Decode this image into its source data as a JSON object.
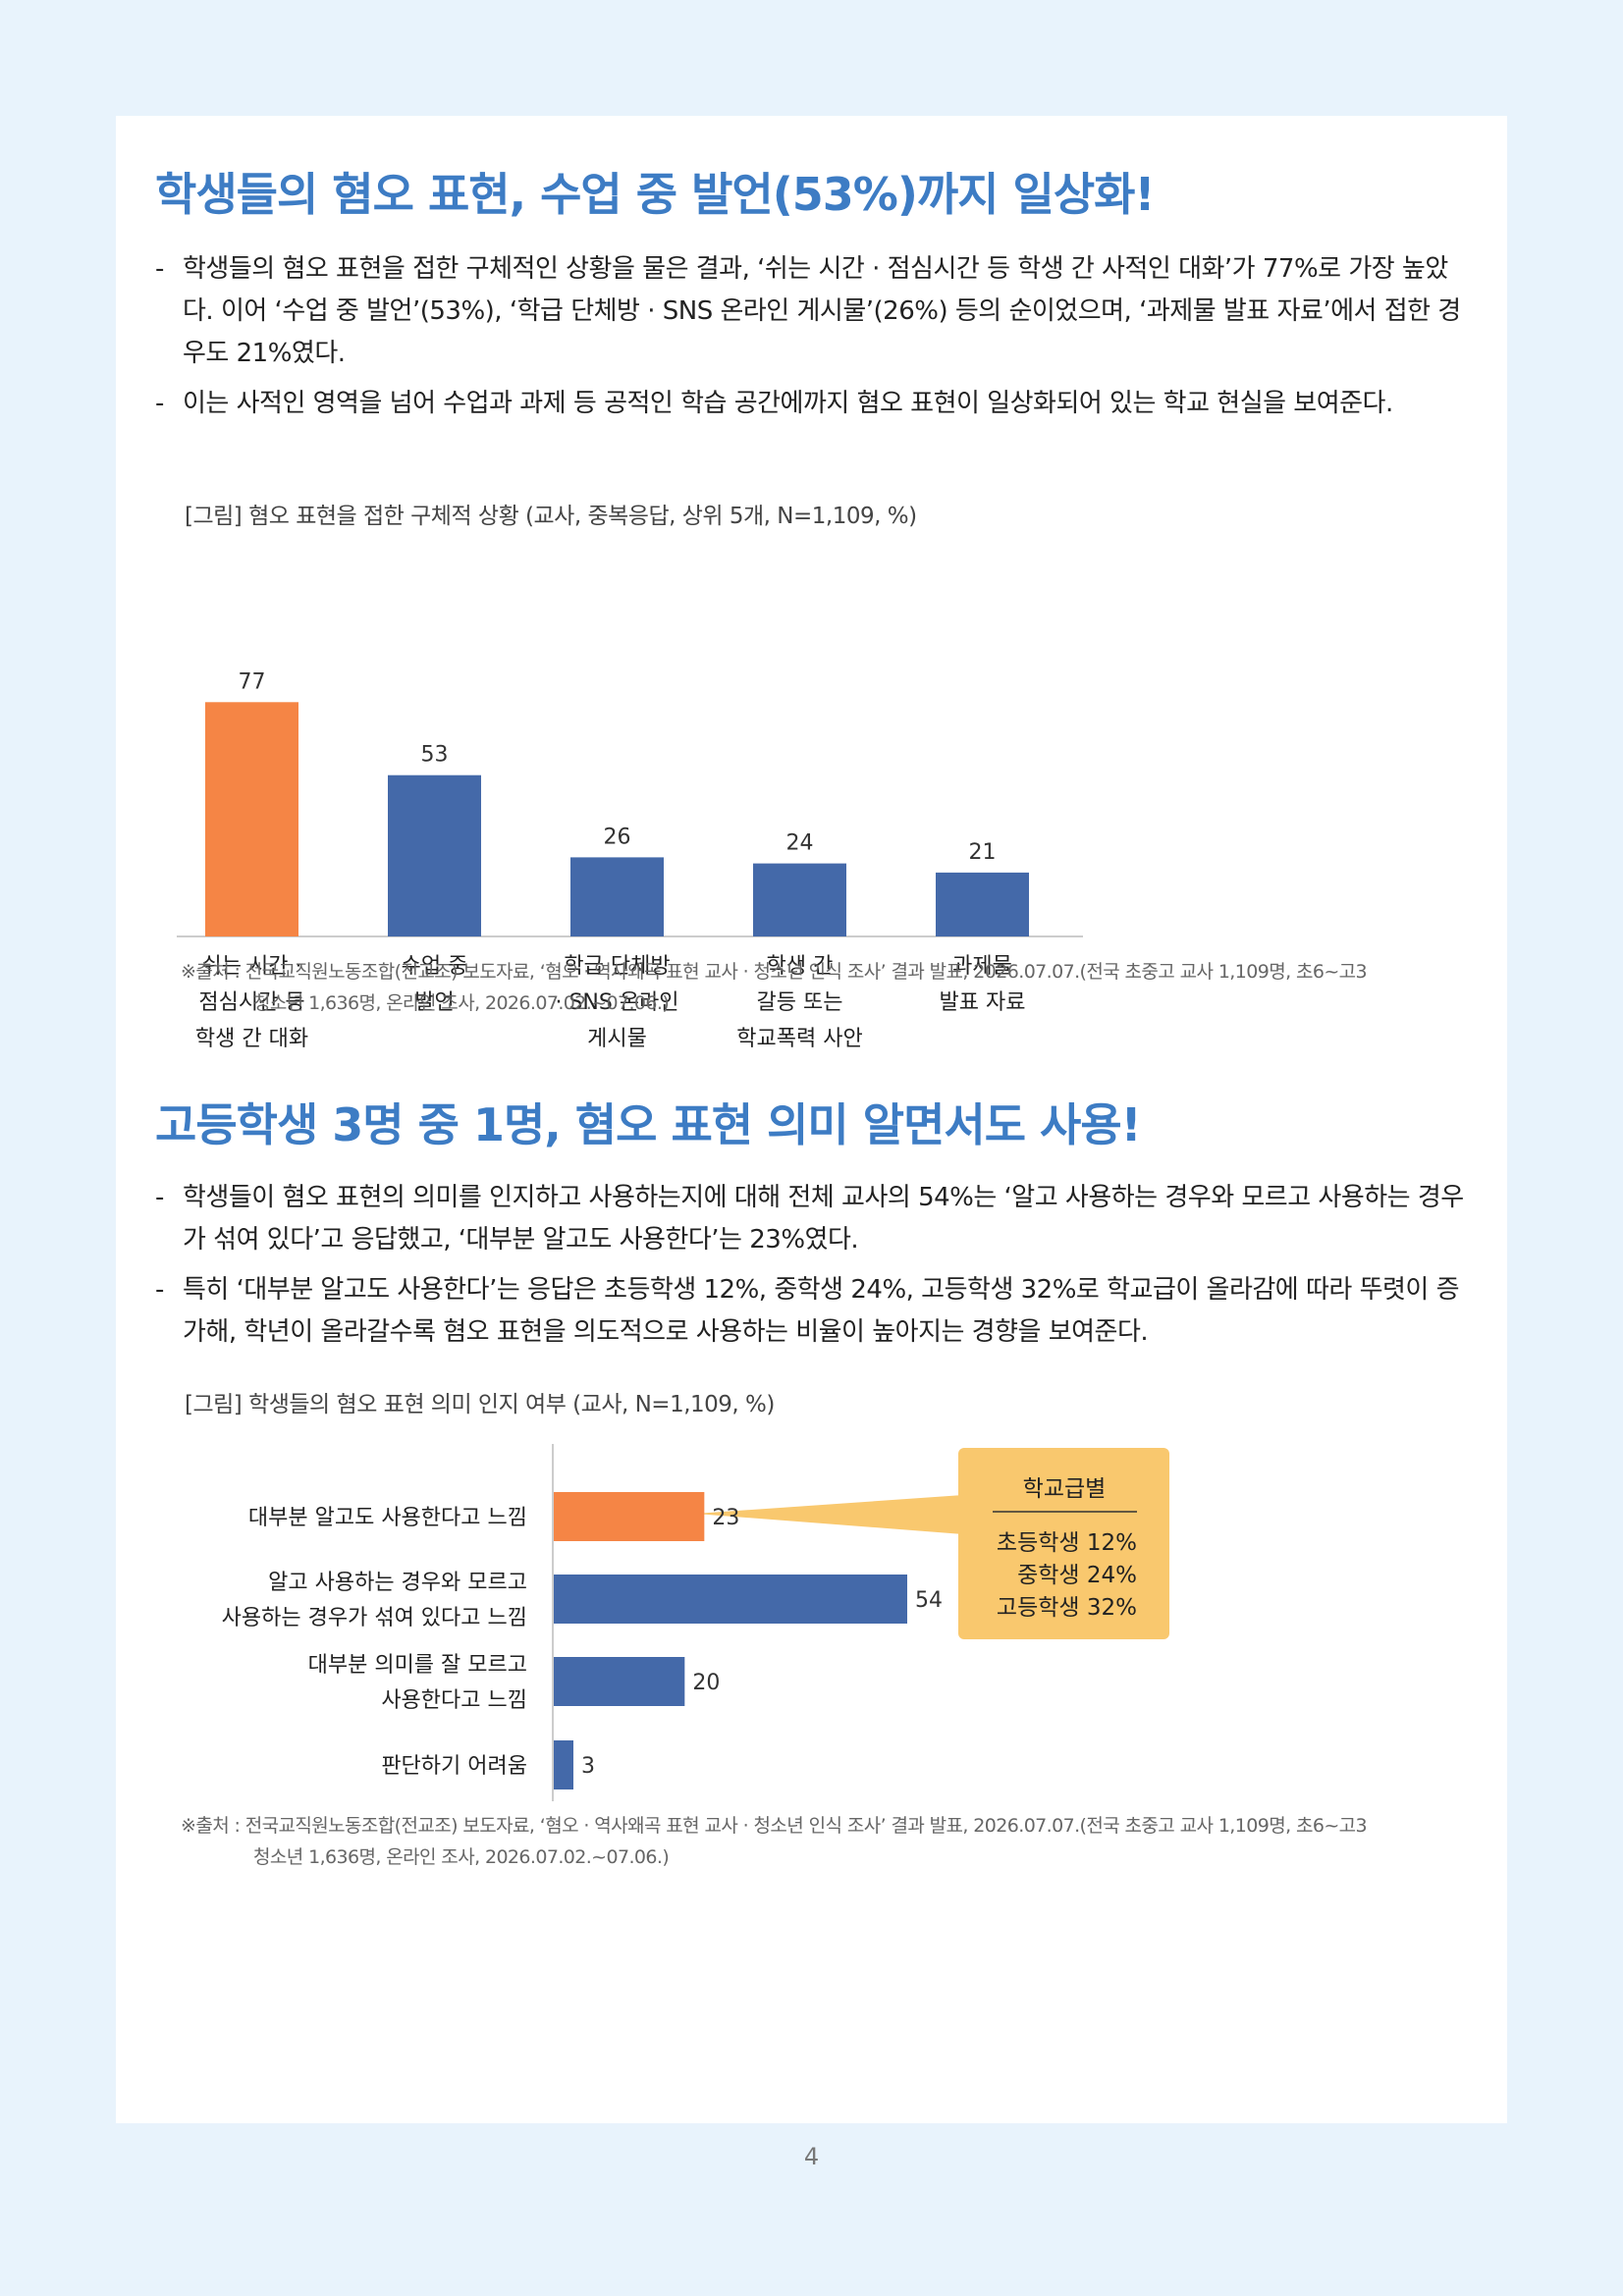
{
  "section1": {
    "title": "학생들의 혐오 표현, 수업 중 발언(53%)까지 일상화!",
    "bullets": [
      "학생들의 혐오 표현을 접한 구체적인 상황을 물은 결과, ‘쉬는 시간 · 점심시간 등 학생 간 사적인 대화’가 77%로 가장 높았다. 이어 ‘수업 중 발언’(53%), ‘학급 단체방 · SNS 온라인 게시물’(26%) 등의 순이었으며, ‘과제물 발표 자료’에서 접한 경우도 21%였다.",
      "이는 사적인 영역을 넘어 수업과 과제 등 공적인 학습 공간에까지 혐오 표현이 일상화되어 있는 학교 현실을 보여준다."
    ],
    "figure_caption": "[그림] 혐오 표현을 접한 구체적 상황 (교사, 중복응답, 상위 5개, N=1,109, %)",
    "source_line1": "※출처 : 전국교직원노동조합(전교조) 보도자료, ‘혐오 · 역사왜곡 표현 교사 · 청소년 인식 조사’ 결과 발표, 2026.07.07.(전국 초중고 교사 1,109명, 초6~고3",
    "source_line2": "청소년 1,636명, 온라인 조사, 2026.07.02.~07.06.)"
  },
  "section2": {
    "title": "고등학생 3명 중 1명, 혐오 표현 의미 알면서도 사용!",
    "bullets": [
      "학생들이 혐오 표현의 의미를 인지하고 사용하는지에 대해 전체 교사의 54%는 ‘알고 사용하는 경우와 모르고 사용하는 경우가 섞여 있다’고 응답했고, ‘대부분 알고도 사용한다’는 23%였다.",
      "특히 ‘대부분 알고도 사용한다’는 응답은 초등학생 12%, 중학생 24%, 고등학생 32%로 학교급이 올라감에 따라 뚜렷이 증가해, 학년이 올라갈수록 혐오 표현을 의도적으로 사용하는 비율이 높아지는 경향을 보여준다."
    ],
    "figure_caption": "[그림] 학생들의 혐오 표현 의미 인지 여부 (교사, N=1,109, %)",
    "source_line1": "※출처 : 전국교직원노동조합(전교조) 보도자료, ‘혐오 · 역사왜곡 표현 교사 · 청소년 인식 조사’ 결과 발표, 2026.07.07.(전국 초중고 교사 1,109명, 초6~고3",
    "source_line2": "청소년 1,636명, 온라인 조사, 2026.07.02.~07.06.)",
    "callout": {
      "title": "학교급별",
      "lines": [
        "초등학생 12%",
        "중학생 24%",
        "고등학생 32%"
      ]
    }
  },
  "page_number": "4",
  "chart_data": [
    {
      "type": "bar",
      "orientation": "vertical",
      "categories": [
        [
          "쉬는 시간 ·",
          "점심시간 등",
          "학생 간 대화"
        ],
        [
          "수업 중",
          "발언"
        ],
        [
          "학급 단체방",
          "· SNS 온라인",
          "게시물"
        ],
        [
          "학생 간",
          "갈등 또는",
          "학교폭력 사안"
        ],
        [
          "과제물",
          "발표 자료"
        ]
      ],
      "values": [
        77,
        53,
        26,
        24,
        21
      ],
      "colors": [
        "#f58545",
        "#4469a9",
        "#4469a9",
        "#4469a9",
        "#4469a9"
      ],
      "ylim": [
        0,
        80
      ]
    },
    {
      "type": "bar",
      "orientation": "horizontal",
      "categories": [
        [
          "대부분 알고도 사용한다고 느낌"
        ],
        [
          "알고 사용하는 경우와 모르고",
          "사용하는 경우가 섞여 있다고 느낌"
        ],
        [
          "대부분 의미를 잘 모르고",
          "사용한다고 느낌"
        ],
        [
          "판단하기 어려움"
        ]
      ],
      "values": [
        23,
        54,
        20,
        3
      ],
      "colors": [
        "#f58545",
        "#4469a9",
        "#4469a9",
        "#4469a9"
      ],
      "xlim": [
        0,
        60
      ]
    }
  ],
  "colors": {
    "title_blue": "#3d7cc4",
    "orange": "#f58545",
    "blue": "#4469a9",
    "callout_bg": "#f9c86e",
    "page_bg": "#e8f3fc"
  }
}
